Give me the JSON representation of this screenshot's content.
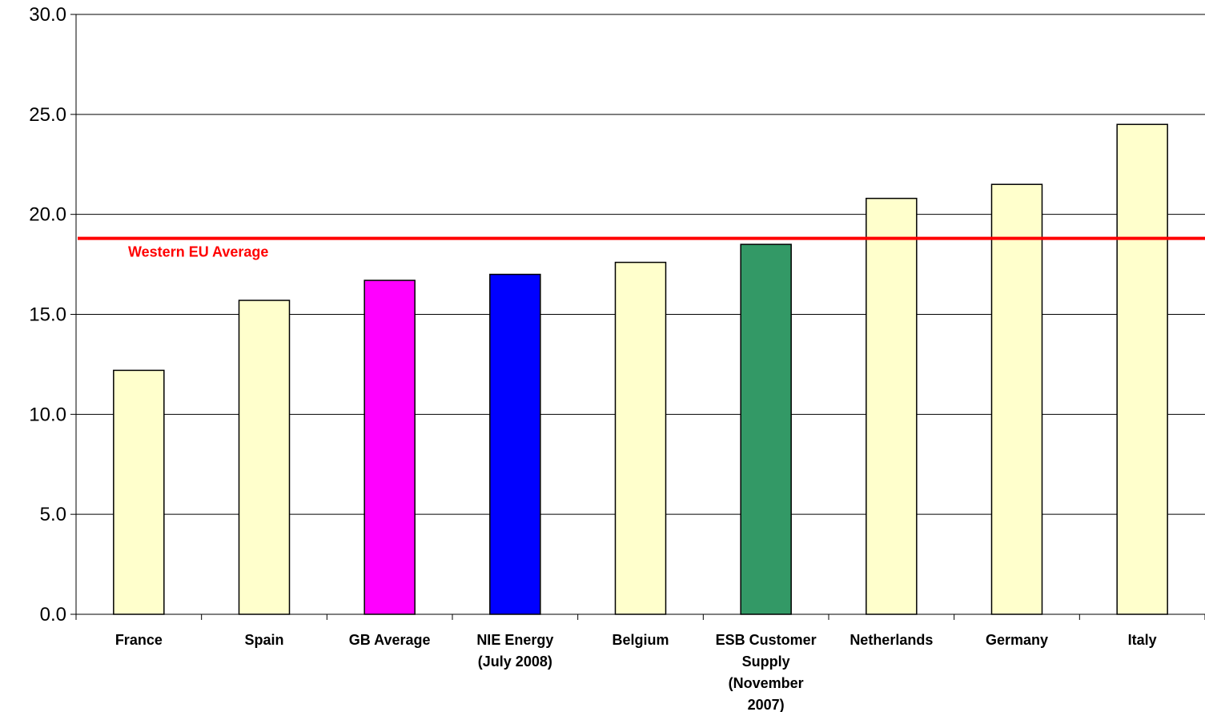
{
  "chart_data": {
    "type": "bar",
    "title": "",
    "xlabel": "",
    "ylabel": "",
    "ylim": [
      0,
      30
    ],
    "yticks": [
      0,
      5,
      10,
      15,
      20,
      25,
      30
    ],
    "ytick_labels": [
      "0.0",
      "5.0",
      "10.0",
      "15.0",
      "20.0",
      "25.0",
      "30.0"
    ],
    "grid": "horizontal",
    "categories": [
      "France",
      "Spain",
      "GB Average",
      "NIE Energy\n(July 2008)",
      "Belgium",
      "ESB Customer\nSupply\n(November\n2007)",
      "Netherlands",
      "Germany",
      "Italy"
    ],
    "values": [
      12.2,
      15.7,
      16.7,
      17.0,
      17.6,
      18.5,
      20.8,
      21.5,
      24.5
    ],
    "bar_colors": [
      "#FFFFCC",
      "#FFFFCC",
      "#FF00FF",
      "#0000FF",
      "#FFFFCC",
      "#339966",
      "#FFFFCC",
      "#FFFFCC",
      "#FFFFCC"
    ],
    "reference_line": {
      "label": "Western EU Average",
      "value": 18.8,
      "color": "#FF0000"
    }
  }
}
